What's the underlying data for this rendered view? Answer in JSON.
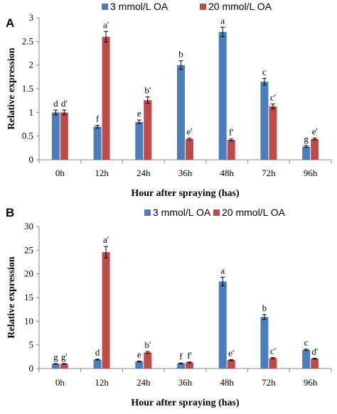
{
  "colors": {
    "oa3": "#4A7EBB",
    "oa20": "#BE4B48"
  },
  "chart_data": [
    {
      "panel_label": "A",
      "type": "bar",
      "categories": [
        "0h",
        "12h",
        "24h",
        "36h",
        "48h",
        "72h",
        "96h"
      ],
      "series": [
        {
          "name": "3 mmol/L OA",
          "values": [
            1.0,
            0.7,
            0.8,
            2.0,
            2.7,
            1.65,
            0.28
          ],
          "errors": [
            0.05,
            0.03,
            0.04,
            0.09,
            0.1,
            0.07,
            0.02
          ],
          "labels": [
            "d",
            "f",
            "e",
            "b",
            "a",
            "c",
            "g"
          ]
        },
        {
          "name": "20 mmol/L OA",
          "values": [
            1.0,
            2.6,
            1.26,
            0.44,
            0.42,
            1.13,
            0.44
          ],
          "errors": [
            0.05,
            0.11,
            0.07,
            0.02,
            0.02,
            0.05,
            0.02
          ],
          "labels": [
            "d'",
            "a'",
            "b'",
            "e'",
            "f'",
            "c'",
            "e'"
          ]
        }
      ],
      "y_ticks": [
        "0",
        "0.5",
        "1",
        "1.5",
        "2",
        "2.5",
        "3"
      ],
      "ylim": [
        0,
        3
      ],
      "xlabel": "Hour after spraying (has)",
      "ylabel": "Relative expression",
      "legend": "top"
    },
    {
      "panel_label": "B",
      "type": "bar",
      "categories": [
        "0h",
        "12h",
        "24h",
        "36h",
        "48h",
        "72h",
        "96h"
      ],
      "series": [
        {
          "name": "3 mmol/L OA",
          "values": [
            1.0,
            1.9,
            1.5,
            1.1,
            18.4,
            10.9,
            3.95
          ],
          "errors": [
            0.05,
            0.1,
            0.1,
            0.08,
            0.9,
            0.5,
            0.15
          ],
          "labels": [
            "g",
            "d",
            "e",
            "f",
            "a",
            "b",
            "c"
          ]
        },
        {
          "name": "20 mmol/L OA",
          "values": [
            1.0,
            24.6,
            3.4,
            1.3,
            1.8,
            2.2,
            2.1
          ],
          "errors": [
            0.05,
            1.2,
            0.2,
            0.08,
            0.1,
            0.12,
            0.1
          ],
          "labels": [
            "g'",
            "a'",
            "b'",
            "f'",
            "e'",
            "c'",
            "d'"
          ]
        }
      ],
      "y_ticks": [
        "0",
        "5",
        "10",
        "15",
        "20",
        "25",
        "30"
      ],
      "ylim": [
        0,
        30
      ],
      "xlabel": "Hour after spraying (has)",
      "ylabel": "Relative expression",
      "legend": "top-right"
    }
  ]
}
